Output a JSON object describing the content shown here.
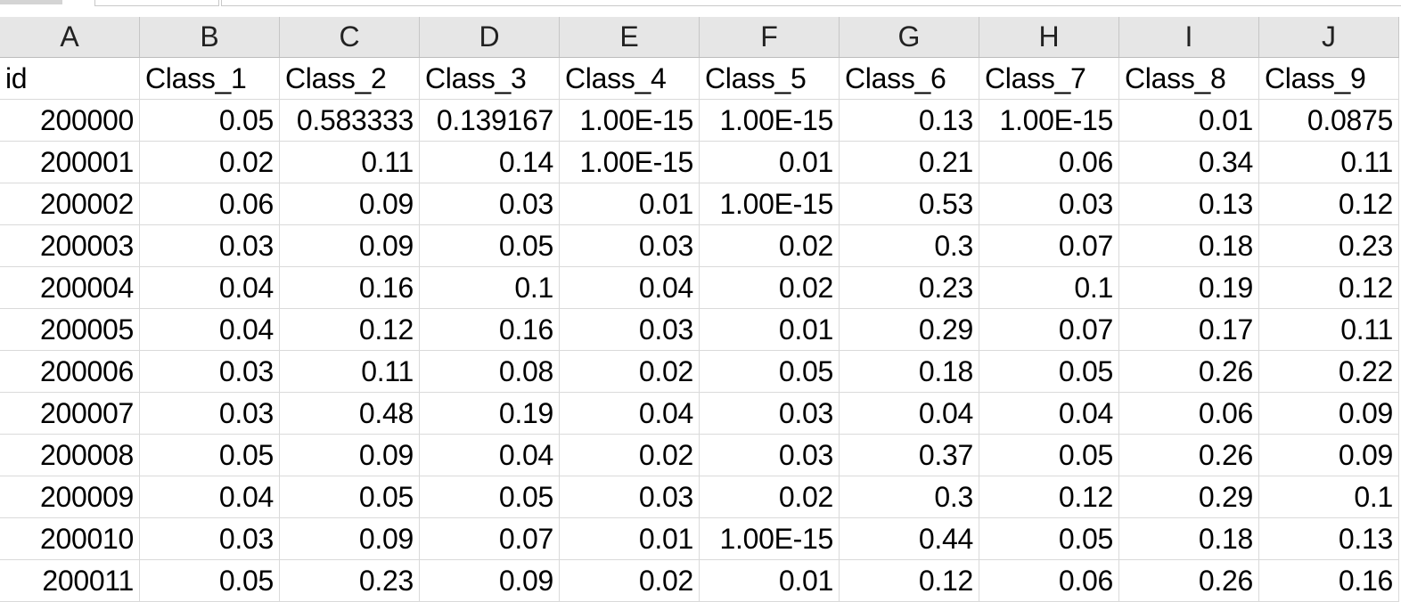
{
  "columns": [
    "A",
    "B",
    "C",
    "D",
    "E",
    "F",
    "G",
    "H",
    "I",
    "J"
  ],
  "header_row": [
    "id",
    "Class_1",
    "Class_2",
    "Class_3",
    "Class_4",
    "Class_5",
    "Class_6",
    "Class_7",
    "Class_8",
    "Class_9"
  ],
  "rows": [
    [
      "200000",
      "0.05",
      "0.583333",
      "0.139167",
      "1.00E-15",
      "1.00E-15",
      "0.13",
      "1.00E-15",
      "0.01",
      "0.0875"
    ],
    [
      "200001",
      "0.02",
      "0.11",
      "0.14",
      "1.00E-15",
      "0.01",
      "0.21",
      "0.06",
      "0.34",
      "0.11"
    ],
    [
      "200002",
      "0.06",
      "0.09",
      "0.03",
      "0.01",
      "1.00E-15",
      "0.53",
      "0.03",
      "0.13",
      "0.12"
    ],
    [
      "200003",
      "0.03",
      "0.09",
      "0.05",
      "0.03",
      "0.02",
      "0.3",
      "0.07",
      "0.18",
      "0.23"
    ],
    [
      "200004",
      "0.04",
      "0.16",
      "0.1",
      "0.04",
      "0.02",
      "0.23",
      "0.1",
      "0.19",
      "0.12"
    ],
    [
      "200005",
      "0.04",
      "0.12",
      "0.16",
      "0.03",
      "0.01",
      "0.29",
      "0.07",
      "0.17",
      "0.11"
    ],
    [
      "200006",
      "0.03",
      "0.11",
      "0.08",
      "0.02",
      "0.05",
      "0.18",
      "0.05",
      "0.26",
      "0.22"
    ],
    [
      "200007",
      "0.03",
      "0.48",
      "0.19",
      "0.04",
      "0.03",
      "0.04",
      "0.04",
      "0.06",
      "0.09"
    ],
    [
      "200008",
      "0.05",
      "0.09",
      "0.04",
      "0.02",
      "0.03",
      "0.37",
      "0.05",
      "0.26",
      "0.09"
    ],
    [
      "200009",
      "0.04",
      "0.05",
      "0.05",
      "0.03",
      "0.02",
      "0.3",
      "0.12",
      "0.29",
      "0.1"
    ],
    [
      "200010",
      "0.03",
      "0.09",
      "0.07",
      "0.01",
      "1.00E-15",
      "0.44",
      "0.05",
      "0.18",
      "0.13"
    ],
    [
      "200011",
      "0.05",
      "0.23",
      "0.09",
      "0.02",
      "0.01",
      "0.12",
      "0.06",
      "0.26",
      "0.16"
    ]
  ]
}
